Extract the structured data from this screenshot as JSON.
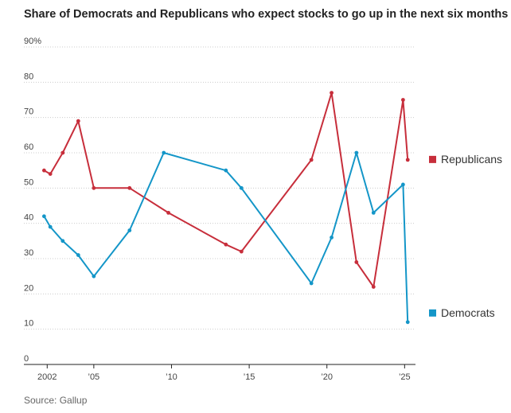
{
  "chart_data": {
    "type": "line",
    "title": "Share of Democrats and Republicans who expect stocks to go up in the next six months",
    "source": "Source: Gallup",
    "ylim": [
      0,
      90
    ],
    "y_ticks": [
      0,
      10,
      20,
      30,
      40,
      50,
      60,
      70,
      80,
      90
    ],
    "y_tick_labels": [
      "0",
      "10",
      "20",
      "30",
      "40",
      "50",
      "60",
      "70",
      "80",
      "90%"
    ],
    "x_ticks": [
      2002,
      2005,
      2010,
      2015,
      2020,
      2025
    ],
    "x_tick_labels": [
      "2002",
      "’05",
      "’10",
      "’15",
      "’20",
      "’25"
    ],
    "xlim": [
      2000.5,
      2025.7
    ],
    "grid": "horizontal dotted",
    "legend": "right, next to series end",
    "series": [
      {
        "name": "Republicans",
        "color": "#c72e3b",
        "x": [
          2001.8,
          2002.2,
          2003.0,
          2004.0,
          2005.0,
          2007.3,
          2009.8,
          2013.5,
          2014.5,
          2019.0,
          2020.3,
          2021.9,
          2023.0,
          2024.9,
          2025.2
        ],
        "values": [
          55,
          54,
          60,
          69,
          50,
          50,
          43,
          34,
          32,
          58,
          77,
          29,
          22,
          75,
          58
        ]
      },
      {
        "name": "Democrats",
        "color": "#1496c8",
        "x": [
          2001.8,
          2002.2,
          2003.0,
          2004.0,
          2005.0,
          2007.3,
          2009.5,
          2013.5,
          2014.5,
          2019.0,
          2020.3,
          2021.9,
          2023.0,
          2024.9,
          2025.2
        ],
        "values": [
          42,
          39,
          35,
          31,
          25,
          38,
          60,
          55,
          50,
          23,
          36,
          60,
          43,
          51,
          12
        ]
      }
    ]
  }
}
